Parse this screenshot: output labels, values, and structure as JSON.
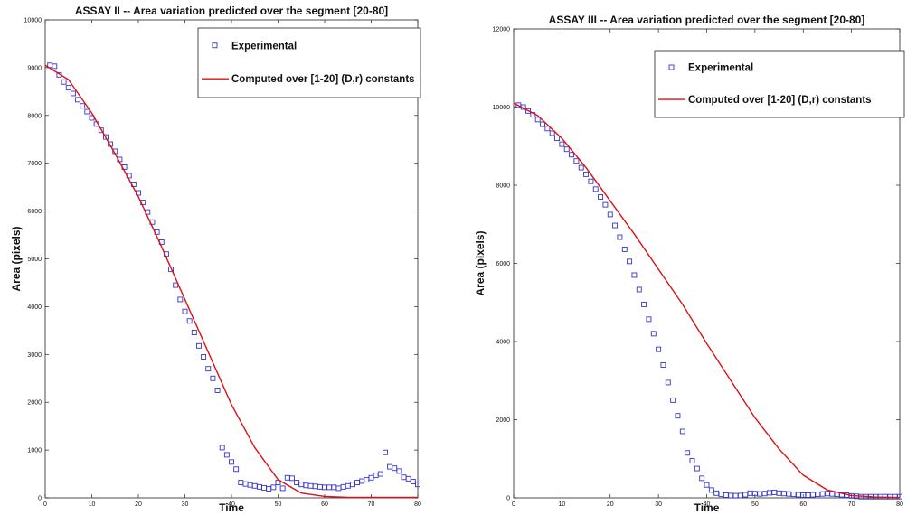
{
  "chart_data": [
    {
      "type": "scatter",
      "title": "ASSAY II -- Area variation predicted over the segment [20-80]",
      "xlabel": "Time",
      "ylabel": "Area (pixels)",
      "xlim": [
        0,
        80
      ],
      "ylim": [
        0,
        10000
      ],
      "xticks": [
        0,
        10,
        20,
        30,
        40,
        50,
        60,
        70,
        80
      ],
      "yticks": [
        0,
        1000,
        2000,
        3000,
        4000,
        5000,
        6000,
        7000,
        8000,
        9000,
        10000
      ],
      "grid": false,
      "legend_position": "top-right",
      "colors": {
        "experimental": "#3333cc",
        "computed": "#dd1111"
      },
      "series": [
        {
          "name": "Experimental",
          "kind": "markers",
          "x": [
            1,
            2,
            3,
            4,
            5,
            6,
            7,
            8,
            9,
            10,
            11,
            12,
            13,
            14,
            15,
            16,
            17,
            18,
            19,
            20,
            21,
            22,
            23,
            24,
            25,
            26,
            27,
            28,
            29,
            30,
            31,
            32,
            33,
            34,
            35,
            36,
            37,
            38,
            39,
            40,
            41,
            42,
            43,
            44,
            45,
            46,
            47,
            48,
            49,
            50,
            51,
            52,
            53,
            54,
            55,
            56,
            57,
            58,
            59,
            60,
            61,
            62,
            63,
            64,
            65,
            66,
            67,
            68,
            69,
            70,
            71,
            72,
            73,
            74,
            75,
            76,
            77,
            78,
            79,
            80
          ],
          "y": [
            9050,
            9030,
            8850,
            8700,
            8580,
            8460,
            8330,
            8200,
            8080,
            7950,
            7820,
            7690,
            7550,
            7400,
            7250,
            7080,
            6920,
            6740,
            6560,
            6380,
            6180,
            5980,
            5770,
            5560,
            5350,
            5100,
            4780,
            4450,
            4150,
            3900,
            3700,
            3460,
            3180,
            2950,
            2700,
            2500,
            2250,
            1050,
            900,
            750,
            600,
            320,
            290,
            270,
            250,
            230,
            210,
            190,
            220,
            320,
            200,
            420,
            410,
            320,
            280,
            260,
            250,
            240,
            230,
            220,
            220,
            220,
            200,
            230,
            250,
            280,
            320,
            350,
            380,
            420,
            470,
            500,
            950,
            650,
            620,
            560,
            430,
            400,
            340,
            280
          ]
        },
        {
          "name": "Computed over [1-20] (D,r) constants",
          "kind": "line",
          "x": [
            0,
            5,
            10,
            15,
            20,
            25,
            30,
            35,
            40,
            45,
            50,
            55,
            60,
            65,
            70,
            75,
            80
          ],
          "y": [
            9050,
            8750,
            8050,
            7200,
            6300,
            5250,
            4150,
            3050,
            1950,
            1050,
            380,
            100,
            30,
            10,
            10,
            10,
            10
          ]
        }
      ]
    },
    {
      "type": "scatter",
      "title": "ASSAY III -- Area variation predicted over the segment [20-80]",
      "xlabel": "Time",
      "ylabel": "Area (pixels)",
      "xlim": [
        0,
        80
      ],
      "ylim": [
        0,
        12000
      ],
      "xticks": [
        0,
        10,
        20,
        30,
        40,
        50,
        60,
        70,
        80
      ],
      "yticks": [
        0,
        2000,
        4000,
        6000,
        8000,
        10000,
        12000
      ],
      "grid": false,
      "legend_position": "top-right",
      "colors": {
        "experimental": "#3333cc",
        "computed": "#dd1111"
      },
      "series": [
        {
          "name": "Experimental",
          "kind": "markers",
          "x": [
            1,
            2,
            3,
            4,
            5,
            6,
            7,
            8,
            9,
            10,
            11,
            12,
            13,
            14,
            15,
            16,
            17,
            18,
            19,
            20,
            21,
            22,
            23,
            24,
            25,
            26,
            27,
            28,
            29,
            30,
            31,
            32,
            33,
            34,
            35,
            36,
            37,
            38,
            39,
            40,
            41,
            42,
            43,
            44,
            45,
            46,
            47,
            48,
            49,
            50,
            51,
            52,
            53,
            54,
            55,
            56,
            57,
            58,
            59,
            60,
            61,
            62,
            63,
            64,
            65,
            66,
            67,
            68,
            69,
            70,
            71,
            72,
            73,
            74,
            75,
            76,
            77,
            78,
            79,
            80
          ],
          "y": [
            10050,
            10000,
            9900,
            9800,
            9680,
            9560,
            9450,
            9330,
            9200,
            9050,
            8920,
            8780,
            8620,
            8450,
            8280,
            8100,
            7900,
            7700,
            7500,
            7250,
            6970,
            6670,
            6360,
            6050,
            5700,
            5330,
            4950,
            4570,
            4200,
            3800,
            3400,
            2950,
            2500,
            2100,
            1700,
            1150,
            950,
            750,
            500,
            330,
            200,
            120,
            90,
            70,
            60,
            55,
            60,
            80,
            120,
            110,
            100,
            110,
            130,
            140,
            120,
            110,
            100,
            90,
            80,
            70,
            70,
            80,
            90,
            100,
            110,
            100,
            90,
            80,
            70,
            50,
            40,
            30,
            30,
            30,
            30,
            30,
            30,
            30,
            30,
            30
          ]
        },
        {
          "name": "Computed over [1-20] (D,r) constants",
          "kind": "line",
          "x": [
            0,
            5,
            10,
            15,
            20,
            25,
            30,
            35,
            40,
            45,
            50,
            55,
            60,
            65,
            70,
            75,
            80
          ],
          "y": [
            10100,
            9780,
            9200,
            8450,
            7600,
            6750,
            5850,
            4950,
            3950,
            3000,
            2050,
            1250,
            580,
            200,
            60,
            20,
            10
          ]
        }
      ]
    }
  ]
}
